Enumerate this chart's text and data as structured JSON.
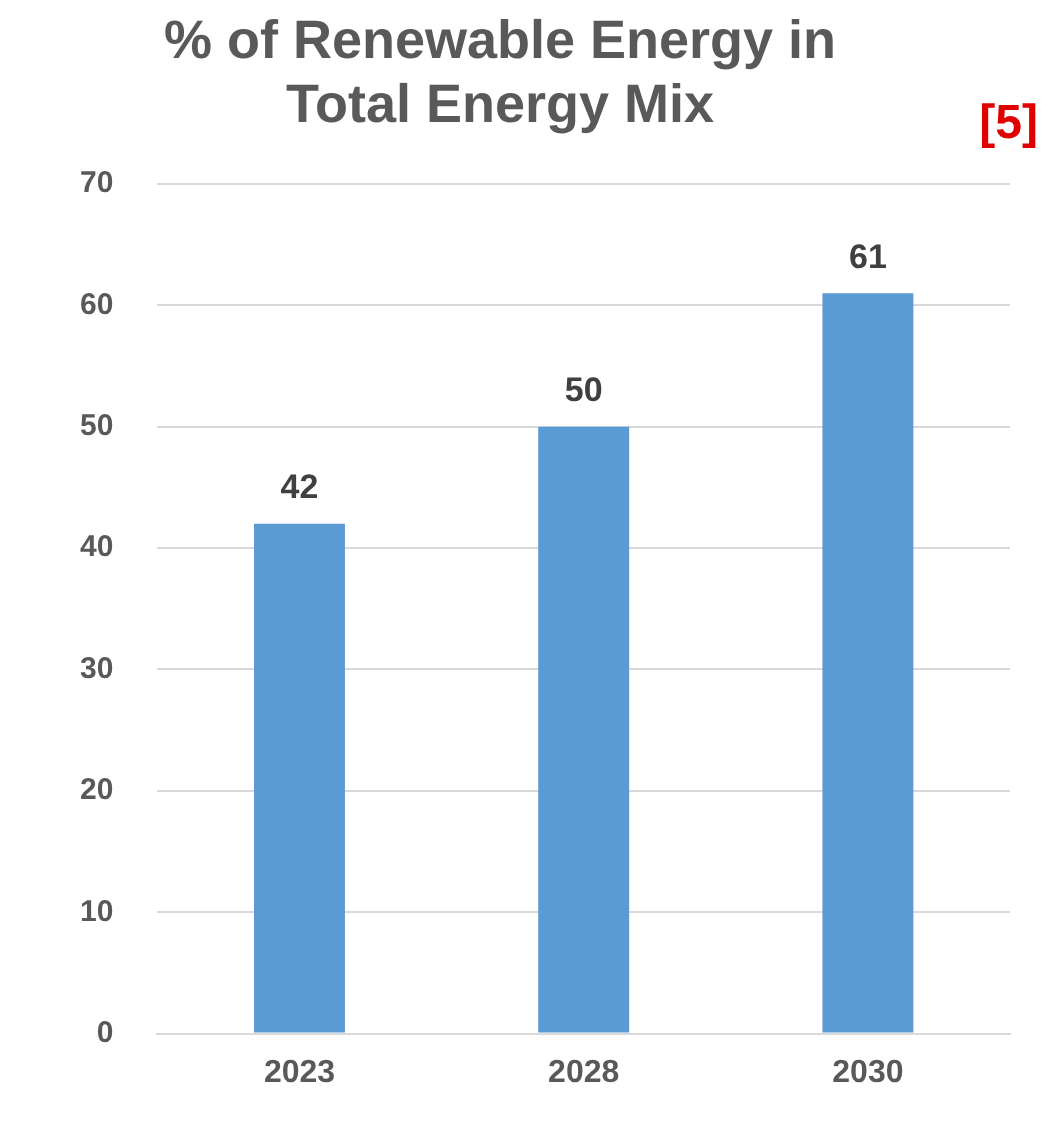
{
  "chart_data": {
    "type": "bar",
    "title": "% of Renewable Energy in Total Energy Mix",
    "annotations": [
      "[5]"
    ],
    "categories": [
      "2023",
      "2028",
      "2030"
    ],
    "values": [
      42,
      50,
      61
    ],
    "color": "#5b9bd5",
    "ylim": [
      0,
      70
    ],
    "yticks": [
      0,
      10,
      20,
      30,
      40,
      50,
      60,
      70
    ],
    "grid": "y",
    "data_labels": true
  }
}
